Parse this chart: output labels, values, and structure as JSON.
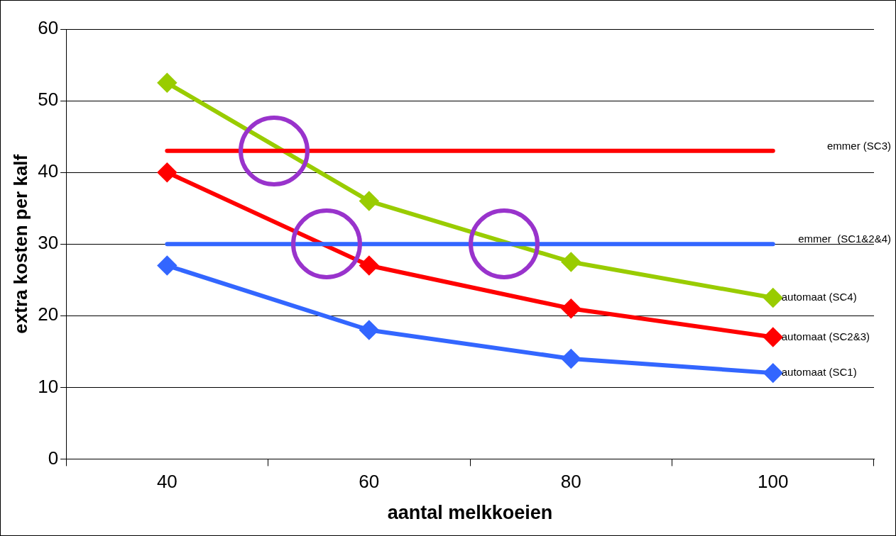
{
  "chart_data": {
    "type": "line",
    "xlabel": "aantal melkkoeien",
    "ylabel": "extra kosten per kalf",
    "categories": [
      "40",
      "60",
      "80",
      "100"
    ],
    "series": [
      {
        "name": "emmer (SC3)",
        "color": "#ff0000",
        "values": [
          43,
          43,
          43,
          43
        ],
        "marker": "none"
      },
      {
        "name": "emmer  (SC1&2&4)",
        "color": "#3366ff",
        "values": [
          30,
          30,
          30,
          30
        ],
        "marker": "none"
      },
      {
        "name": "automaat (SC4)",
        "color": "#99cc00",
        "values": [
          52.5,
          36,
          27.5,
          22.5
        ]
      },
      {
        "name": "automaat (SC2&3)",
        "color": "#ff0000",
        "values": [
          40,
          27,
          21,
          17
        ]
      },
      {
        "name": "automaat (SC1)",
        "color": "#3366ff",
        "values": [
          27,
          18,
          14,
          12
        ]
      }
    ],
    "ylim": [
      0,
      60
    ],
    "yticks": [
      0,
      10,
      20,
      30,
      40,
      50,
      60
    ],
    "grid": "y",
    "legend": false,
    "marker": "diamond",
    "line_style": "solid"
  }
}
